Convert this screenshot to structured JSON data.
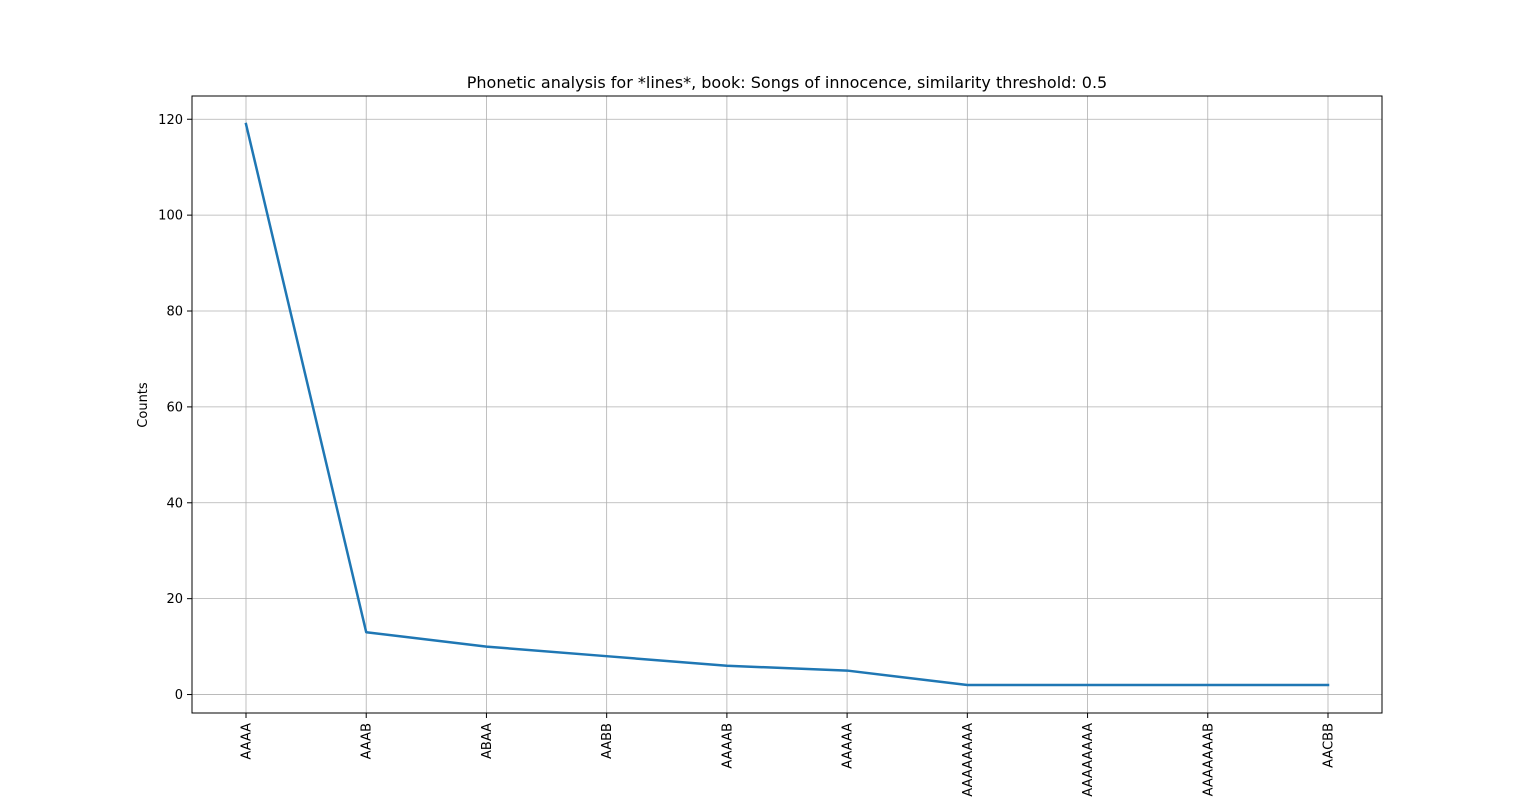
{
  "chart_data": {
    "type": "line",
    "title": "Phonetic analysis for *lines*, book: Songs of innocence, similarity threshold: 0.5",
    "xlabel": "",
    "ylabel": "Counts",
    "categories": [
      "AAAA",
      "AAAB",
      "ABAA",
      "AABB",
      "AAAAB",
      "AAAAA",
      "AAAAAAAA",
      "AAAAAAAA",
      "AAAAAAAB",
      "AACBB"
    ],
    "values": [
      119,
      13,
      10,
      8,
      6,
      5,
      2,
      2,
      2,
      2
    ],
    "yticks": [
      0,
      20,
      40,
      60,
      80,
      100,
      120
    ],
    "ylim": [
      -3.85,
      124.85
    ],
    "grid": true,
    "line_color": "#1f77b4"
  }
}
